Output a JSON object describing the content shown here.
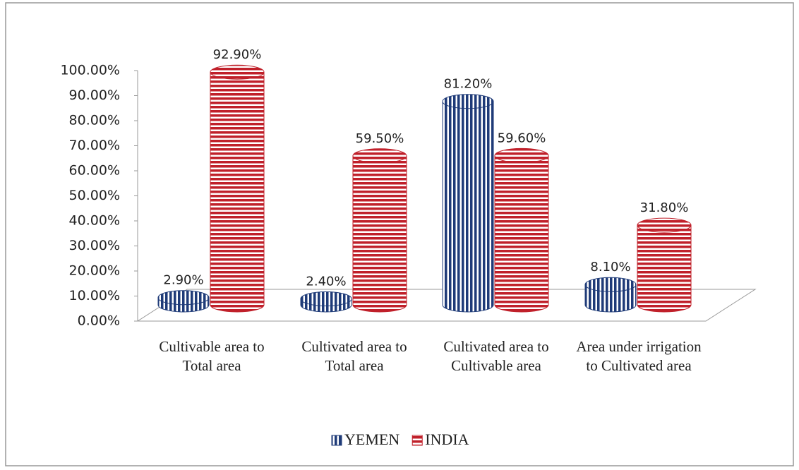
{
  "chart_data": {
    "type": "cylinder-bar",
    "categories": [
      "Cultivable area to Total area",
      "Cultivated area to Total area",
      "Cultivated area to Cultivable area",
      "Area under irrigation to Cultivated area"
    ],
    "series": [
      {
        "name": "YEMEN",
        "color": "#1f3b78",
        "values": [
          2.9,
          2.4,
          81.2,
          8.1
        ],
        "value_labels": [
          "2.90%",
          "2.40%",
          "81.20%",
          "8.10%"
        ]
      },
      {
        "name": "INDIA",
        "color": "#c0202a",
        "values": [
          92.9,
          59.5,
          59.6,
          31.8
        ],
        "value_labels": [
          "92.90%",
          "59.50%",
          "59.60%",
          "31.80%"
        ]
      }
    ],
    "ylim": [
      0,
      100
    ],
    "yticks": [
      {
        "value": 0,
        "label": "0.00%"
      },
      {
        "value": 10,
        "label": "10.00%"
      },
      {
        "value": 20,
        "label": "20.00%"
      },
      {
        "value": 30,
        "label": "30.00%"
      },
      {
        "value": 40,
        "label": "40.00%"
      },
      {
        "value": 50,
        "label": "50.00%"
      },
      {
        "value": 60,
        "label": "60.00%"
      },
      {
        "value": 70,
        "label": "70.00%"
      },
      {
        "value": 80,
        "label": "80.00%"
      },
      {
        "value": 90,
        "label": "90.00%"
      },
      {
        "value": 100,
        "label": "100.00%"
      }
    ],
    "legend": "bottom"
  }
}
